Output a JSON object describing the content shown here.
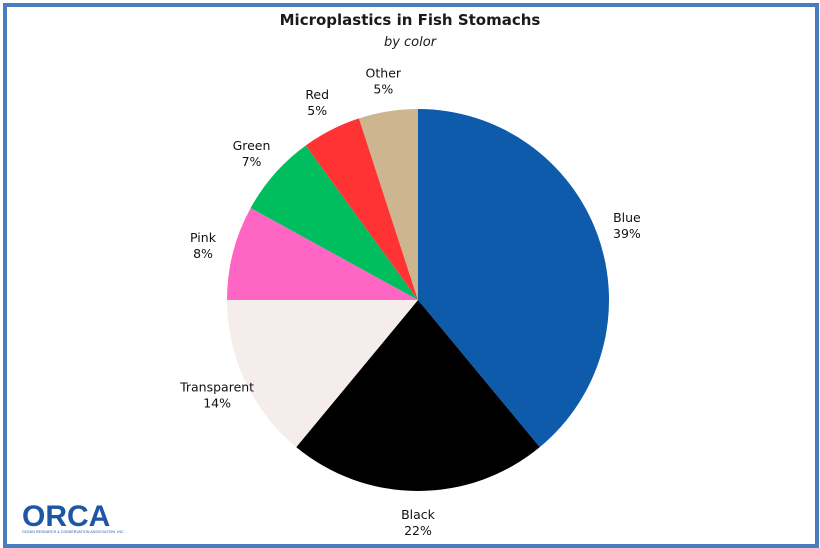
{
  "chart_data": {
    "type": "pie",
    "title": "Microplastics in Fish Stomachs",
    "subtitle": "by color",
    "categories": [
      "Blue",
      "Black",
      "Transparent",
      "Pink",
      "Green",
      "Red",
      "Other"
    ],
    "values": [
      39,
      22,
      14,
      8,
      7,
      5,
      5
    ],
    "value_labels": [
      "39%",
      "22%",
      "14%",
      "8%",
      "7%",
      "5%",
      "5%"
    ],
    "colors": [
      "#0e5aab",
      "#000000",
      "#f5edeb",
      "#ff66c4",
      "#00be5e",
      "#ff3333",
      "#cdb68f"
    ],
    "start": "12 o'clock",
    "direction": "clockwise"
  },
  "logo": {
    "text": "ORCA",
    "tagline": "OCEAN RESEARCH & CONSERVATION ASSOCIATION, INC.",
    "color": "#1d56a6"
  },
  "frame": {
    "border_color": "#4a7cc0"
  }
}
